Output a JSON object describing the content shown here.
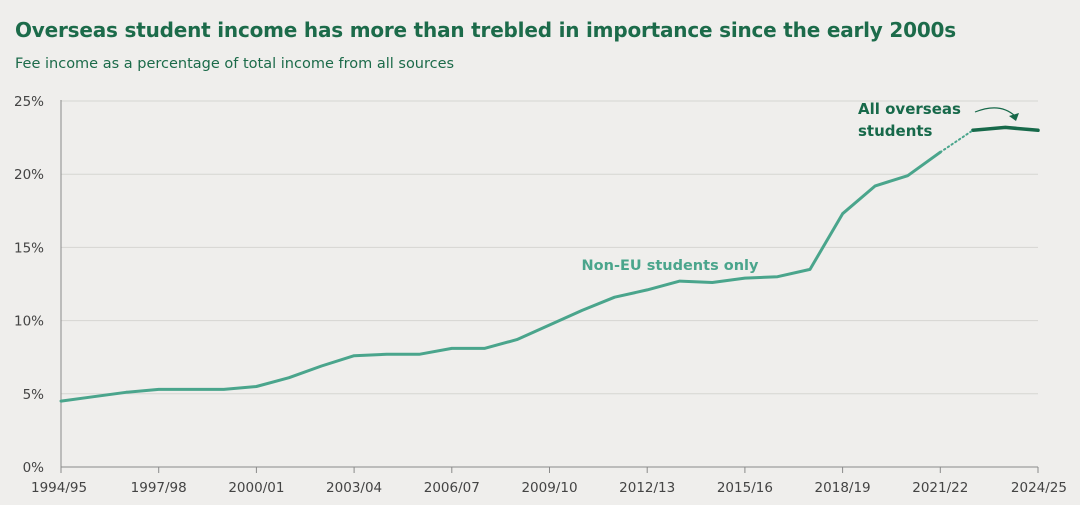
{
  "header": {
    "title": "Overseas student income has more than trebled in importance since the early 2000s",
    "subtitle": "Fee income as a percentage of total income from all sources"
  },
  "chart_data": {
    "type": "line",
    "title": "Overseas student income has more than trebled in importance since the early 2000s",
    "subtitle": "Fee income as a percentage of total income from all sources",
    "xlabel": "",
    "ylabel": "",
    "x_tick_labels": [
      "1994/95",
      "1997/98",
      "2000/01",
      "2003/04",
      "2006/07",
      "2009/10",
      "2012/13",
      "2015/16",
      "2018/19",
      "2021/22",
      "2024/25"
    ],
    "y_ticks": [
      0,
      5,
      10,
      15,
      20,
      25
    ],
    "y_tick_labels": [
      "0%",
      "5%",
      "10%",
      "15%",
      "20%",
      "25%"
    ],
    "ylim": [
      0,
      25
    ],
    "grid": "horizontal",
    "x_start_year": 1994,
    "series": [
      {
        "name": "Non-EU students only",
        "color": "#4aa58c",
        "x": [
          "1994/95",
          "1995/96",
          "1996/97",
          "1997/98",
          "1998/99",
          "1999/00",
          "2000/01",
          "2001/02",
          "2002/03",
          "2003/04",
          "2004/05",
          "2005/06",
          "2006/07",
          "2007/08",
          "2008/09",
          "2009/10",
          "2010/11",
          "2011/12",
          "2012/13",
          "2013/14",
          "2014/15",
          "2015/16",
          "2016/17",
          "2017/18",
          "2018/19",
          "2019/20",
          "2020/21",
          "2021/22"
        ],
        "values": [
          4.5,
          4.8,
          5.1,
          5.3,
          5.3,
          5.3,
          5.5,
          6.1,
          6.9,
          7.6,
          7.7,
          7.7,
          8.1,
          8.1,
          8.7,
          9.7,
          10.7,
          11.6,
          12.1,
          12.7,
          12.6,
          12.9,
          13.0,
          13.5,
          17.3,
          19.2,
          19.9,
          21.5
        ]
      },
      {
        "name": "All overseas students",
        "color": "#17694a",
        "x": [
          "2022/23",
          "2023/24",
          "2024/25"
        ],
        "values": [
          23.0,
          23.2,
          23.0
        ]
      }
    ],
    "connector": {
      "from": [
        "2021/22",
        21.5
      ],
      "to": [
        "2022/23",
        23.0
      ],
      "style": "dotted"
    },
    "annotations": [
      {
        "text_lines": [
          "Non-EU students only"
        ],
        "series": 0,
        "color": "#4aa58c"
      },
      {
        "text_lines": [
          "All overseas",
          "students"
        ],
        "series": 1,
        "color": "#17694a",
        "arrow": true
      }
    ]
  }
}
